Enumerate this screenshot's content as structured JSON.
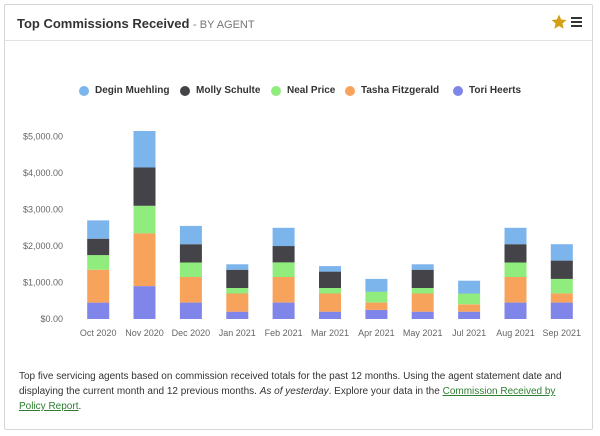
{
  "widget": {
    "title": "Top Commissions Received",
    "subtitle": "- BY AGENT"
  },
  "icons": {
    "favorite": "star-icon",
    "menu": "hamburger-menu-icon"
  },
  "colors": {
    "star": "#d4a017",
    "link": "#2e7d32"
  },
  "description": {
    "text_before": "Top five servicing agents based on commission received totals for the past 12 months. Using the agent statement date and displaying the current month and 12 previous months. ",
    "emphasis": "As of yesterday",
    "text_middle": ". Explore your data in the ",
    "link_text": "Commission Received by Policy Report",
    "text_after": "."
  },
  "chart_data": {
    "type": "bar",
    "stacked": true,
    "categories": [
      "Oct 2020",
      "Nov 2020",
      "Dec 2020",
      "Jan 2021",
      "Feb 2021",
      "Mar 2021",
      "Apr 2021",
      "May 2021",
      "Jul 2021",
      "Aug 2021",
      "Sep 2021"
    ],
    "ylim": [
      0,
      5500
    ],
    "yticks": [
      0,
      1000,
      2000,
      3000,
      4000,
      5000
    ],
    "ytick_labels": [
      "$0.00",
      "$1,000.00",
      "$2,000.00",
      "$3,000.00",
      "$4,000.00",
      "$5,000.00"
    ],
    "grid": false,
    "legend_position": "top",
    "series": [
      {
        "name": "Degin Muehling",
        "color": "#7cb5ec",
        "values": [
          500,
          1000,
          500,
          150,
          500,
          150,
          350,
          150,
          350,
          450,
          450
        ]
      },
      {
        "name": "Molly Schulte",
        "color": "#434348",
        "values": [
          450,
          1050,
          500,
          500,
          450,
          450,
          0,
          500,
          0,
          500,
          500
        ]
      },
      {
        "name": "Neal Price",
        "color": "#90ed7d",
        "values": [
          400,
          750,
          400,
          150,
          400,
          150,
          300,
          150,
          300,
          400,
          400
        ]
      },
      {
        "name": "Tasha Fitzgerald",
        "color": "#f7a35c",
        "values": [
          900,
          1450,
          700,
          500,
          700,
          500,
          200,
          500,
          200,
          700,
          250
        ]
      },
      {
        "name": "Tori Heerts",
        "color": "#8085e9",
        "values": [
          450,
          900,
          450,
          200,
          450,
          200,
          250,
          200,
          200,
          450,
          450
        ]
      }
    ]
  }
}
